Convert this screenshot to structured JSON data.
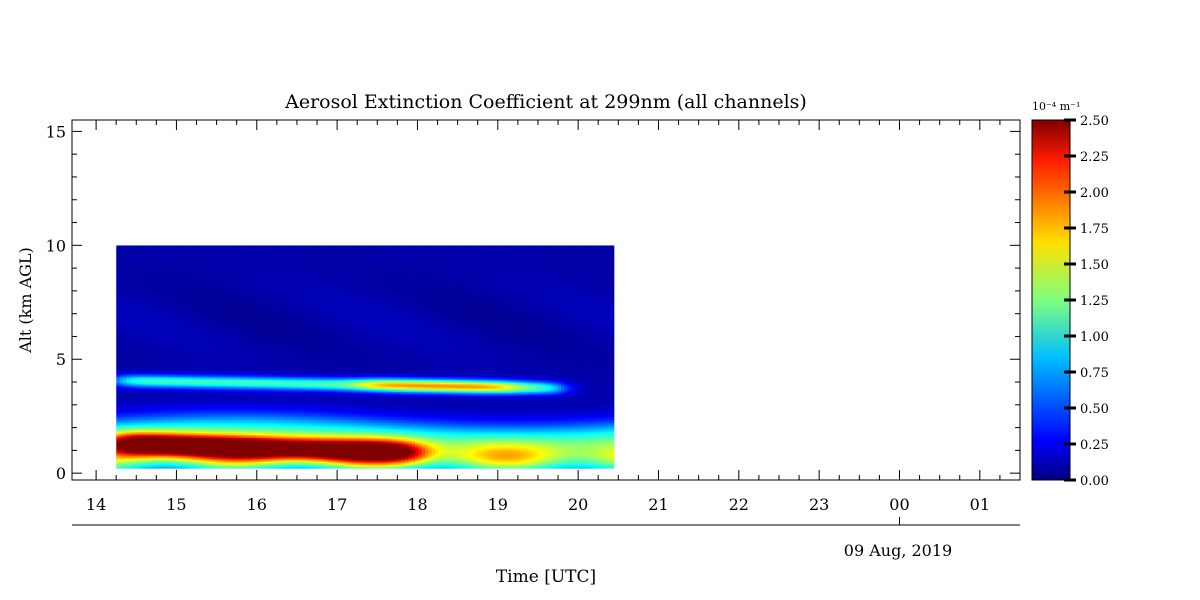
{
  "chart_data": {
    "type": "heatmap",
    "title": "Aerosol Extinction Coefficient at 299nm (all channels)",
    "xlabel": "Time [UTC]",
    "ylabel": "Alt (km AGL)",
    "date_label": "09 Aug, 2019",
    "x_tick_labels": [
      "14",
      "15",
      "16",
      "17",
      "18",
      "19",
      "20",
      "21",
      "22",
      "23",
      "00",
      "01"
    ],
    "x_tick_hours": [
      14,
      15,
      16,
      17,
      18,
      19,
      20,
      21,
      22,
      23,
      24,
      25
    ],
    "date_tick_hour": 24,
    "xlim": [
      13.7,
      25.5
    ],
    "ylim": [
      -0.3,
      15.5
    ],
    "y_ticks": [
      0,
      5,
      10,
      15
    ],
    "y_tick_labels": [
      "0",
      "5",
      "10",
      "15"
    ],
    "data_extent": {
      "x": [
        14.25,
        20.45
      ],
      "y": [
        0.2,
        10
      ]
    },
    "colorbar": {
      "unit_label": "10⁻⁴ m⁻¹",
      "range": [
        0,
        2.5
      ],
      "ticks": [
        0,
        0.25,
        0.5,
        0.75,
        1.0,
        1.25,
        1.5,
        1.75,
        2.0,
        2.25,
        2.5
      ],
      "tick_labels": [
        "0.00",
        "0.25",
        "0.50",
        "0.75",
        "1.00",
        "1.25",
        "1.50",
        "1.75",
        "2.00",
        "2.25",
        "2.50"
      ],
      "colormap": "jet"
    },
    "layers": [
      {
        "feature": "near-surface layer",
        "x": [
          14.25,
          20.45
        ],
        "alt_center": 0.6,
        "alt_width": 0.5,
        "value": 1.3
      },
      {
        "feature": "dense boundary layer",
        "x": [
          14.25,
          18.0
        ],
        "alt_center": 1.3,
        "alt_width": 0.35,
        "value_start": 2.5,
        "value_end": 1.8
      },
      {
        "feature": "residual layer",
        "x": [
          14.25,
          20.45
        ],
        "alt_center": 1.6,
        "alt_width": 0.6,
        "value": 0.9
      },
      {
        "feature": "elevated layer",
        "x": [
          14.25,
          19.8
        ],
        "alt_center": 4.1,
        "alt_width": 0.2,
        "value": 1.0,
        "peak_x": [
          17.3,
          19.2
        ],
        "peak_value": 1.75
      },
      {
        "feature": "background",
        "x": [
          14.25,
          20.45
        ],
        "alt": [
          0.2,
          10
        ],
        "value": 0.1
      }
    ]
  }
}
